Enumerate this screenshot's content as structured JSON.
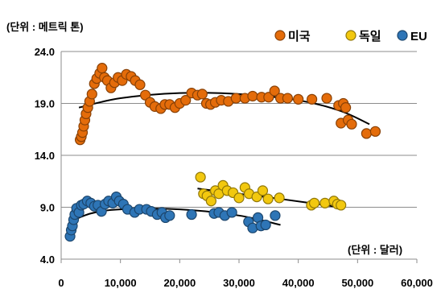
{
  "chart_data": {
    "type": "scatter",
    "y_unit_label": "(단위 :  메트릭 톤)",
    "x_unit_label": "(단위 :  달러)",
    "xlim": [
      0,
      60000
    ],
    "ylim": [
      4.0,
      24.0
    ],
    "x_ticks": [
      0,
      10000,
      20000,
      30000,
      40000,
      50000,
      60000
    ],
    "x_tick_labels": [
      "0",
      "10,000",
      "20,000",
      "30,000",
      "40,000",
      "50,000",
      "60,000"
    ],
    "y_ticks": [
      4.0,
      9.0,
      14.0,
      19.0,
      24.0
    ],
    "y_tick_labels": [
      "4.0",
      "9.0",
      "14.0",
      "19.0",
      "24.0"
    ],
    "grid": "horizontal",
    "legend_position": "top-right",
    "series": [
      {
        "name": "미국",
        "color": "#E46C0A",
        "trend": [
          [
            3000,
            18.6
          ],
          [
            10000,
            19.5
          ],
          [
            20000,
            20.0
          ],
          [
            30000,
            19.9
          ],
          [
            40000,
            19.3
          ],
          [
            47000,
            18.3
          ],
          [
            52000,
            17.0
          ]
        ],
        "points": [
          [
            3200,
            15.5
          ],
          [
            3400,
            15.8
          ],
          [
            3600,
            16.2
          ],
          [
            3800,
            16.8
          ],
          [
            4000,
            17.4
          ],
          [
            4200,
            18.0
          ],
          [
            4500,
            18.6
          ],
          [
            4800,
            19.2
          ],
          [
            5200,
            19.9
          ],
          [
            5600,
            20.9
          ],
          [
            6000,
            21.4
          ],
          [
            6500,
            21.9
          ],
          [
            6900,
            22.4
          ],
          [
            7300,
            21.5
          ],
          [
            7800,
            21.2
          ],
          [
            8400,
            20.5
          ],
          [
            9000,
            21.0
          ],
          [
            9600,
            21.5
          ],
          [
            10300,
            21.2
          ],
          [
            11000,
            21.8
          ],
          [
            11800,
            21.6
          ],
          [
            12500,
            21.2
          ],
          [
            13300,
            20.8
          ],
          [
            14200,
            19.8
          ],
          [
            15000,
            19.1
          ],
          [
            15800,
            18.7
          ],
          [
            16800,
            18.5
          ],
          [
            17500,
            18.9
          ],
          [
            18300,
            18.9
          ],
          [
            19200,
            18.6
          ],
          [
            20000,
            19.0
          ],
          [
            21000,
            19.3
          ],
          [
            22000,
            20.0
          ],
          [
            23000,
            19.8
          ],
          [
            23800,
            19.9
          ],
          [
            24500,
            19.0
          ],
          [
            25200,
            18.9
          ],
          [
            26000,
            19.1
          ],
          [
            27000,
            19.3
          ],
          [
            28200,
            19.2
          ],
          [
            29500,
            19.5
          ],
          [
            31000,
            19.5
          ],
          [
            32300,
            19.7
          ],
          [
            33800,
            19.6
          ],
          [
            35000,
            19.6
          ],
          [
            36000,
            20.2
          ],
          [
            37000,
            19.5
          ],
          [
            38200,
            19.5
          ],
          [
            40000,
            19.4
          ],
          [
            42300,
            19.4
          ],
          [
            44800,
            19.5
          ],
          [
            46800,
            18.8
          ],
          [
            47600,
            19.0
          ],
          [
            48000,
            18.6
          ],
          [
            47200,
            17.1
          ],
          [
            48400,
            17.4
          ],
          [
            49000,
            17.0
          ],
          [
            51500,
            16.1
          ],
          [
            53000,
            16.3
          ]
        ]
      },
      {
        "name": "독일",
        "color": "#F2C80F",
        "trend": [
          [
            23000,
            10.8
          ],
          [
            30000,
            10.3
          ],
          [
            37000,
            9.8
          ],
          [
            47000,
            9.0
          ]
        ],
        "points": [
          [
            23500,
            11.9
          ],
          [
            24000,
            10.3
          ],
          [
            24600,
            10.1
          ],
          [
            25300,
            9.6
          ],
          [
            26000,
            10.6
          ],
          [
            26600,
            10.3
          ],
          [
            27300,
            11.1
          ],
          [
            28000,
            10.6
          ],
          [
            29000,
            10.4
          ],
          [
            30000,
            9.9
          ],
          [
            31000,
            10.9
          ],
          [
            31700,
            10.3
          ],
          [
            33000,
            10.0
          ],
          [
            34000,
            10.6
          ],
          [
            34900,
            9.8
          ],
          [
            36800,
            9.9
          ],
          [
            42200,
            9.2
          ],
          [
            42700,
            9.4
          ],
          [
            44500,
            9.4
          ],
          [
            46000,
            9.6
          ],
          [
            46600,
            9.3
          ],
          [
            47200,
            9.2
          ]
        ]
      },
      {
        "name": "EU",
        "color": "#2E75B6",
        "trend": [
          [
            1500,
            7.6
          ],
          [
            5000,
            8.4
          ],
          [
            10000,
            8.8
          ],
          [
            20000,
            8.8
          ],
          [
            30000,
            8.2
          ],
          [
            37000,
            7.3
          ]
        ],
        "points": [
          [
            1500,
            6.2
          ],
          [
            1700,
            6.8
          ],
          [
            1900,
            7.2
          ],
          [
            2100,
            7.8
          ],
          [
            2300,
            8.3
          ],
          [
            2600,
            8.9
          ],
          [
            3000,
            8.5
          ],
          [
            3400,
            9.2
          ],
          [
            3800,
            9.3
          ],
          [
            4400,
            9.6
          ],
          [
            5000,
            9.4
          ],
          [
            5600,
            9.1
          ],
          [
            6200,
            9.2
          ],
          [
            6800,
            8.6
          ],
          [
            7400,
            9.3
          ],
          [
            8000,
            9.6
          ],
          [
            8700,
            9.4
          ],
          [
            9300,
            10.0
          ],
          [
            9800,
            9.6
          ],
          [
            10500,
            9.3
          ],
          [
            11200,
            8.8
          ],
          [
            12400,
            8.5
          ],
          [
            13200,
            8.8
          ],
          [
            14400,
            8.8
          ],
          [
            15200,
            8.6
          ],
          [
            16200,
            8.3
          ],
          [
            17000,
            8.5
          ],
          [
            17600,
            8.0
          ],
          [
            18300,
            8.2
          ],
          [
            22000,
            8.3
          ],
          [
            25800,
            8.4
          ],
          [
            26600,
            8.5
          ],
          [
            27600,
            8.2
          ],
          [
            28800,
            8.5
          ],
          [
            31600,
            7.6
          ],
          [
            32300,
            7.0
          ],
          [
            33200,
            8.0
          ],
          [
            33700,
            7.2
          ],
          [
            34500,
            7.3
          ],
          [
            36100,
            8.2
          ]
        ]
      }
    ]
  }
}
